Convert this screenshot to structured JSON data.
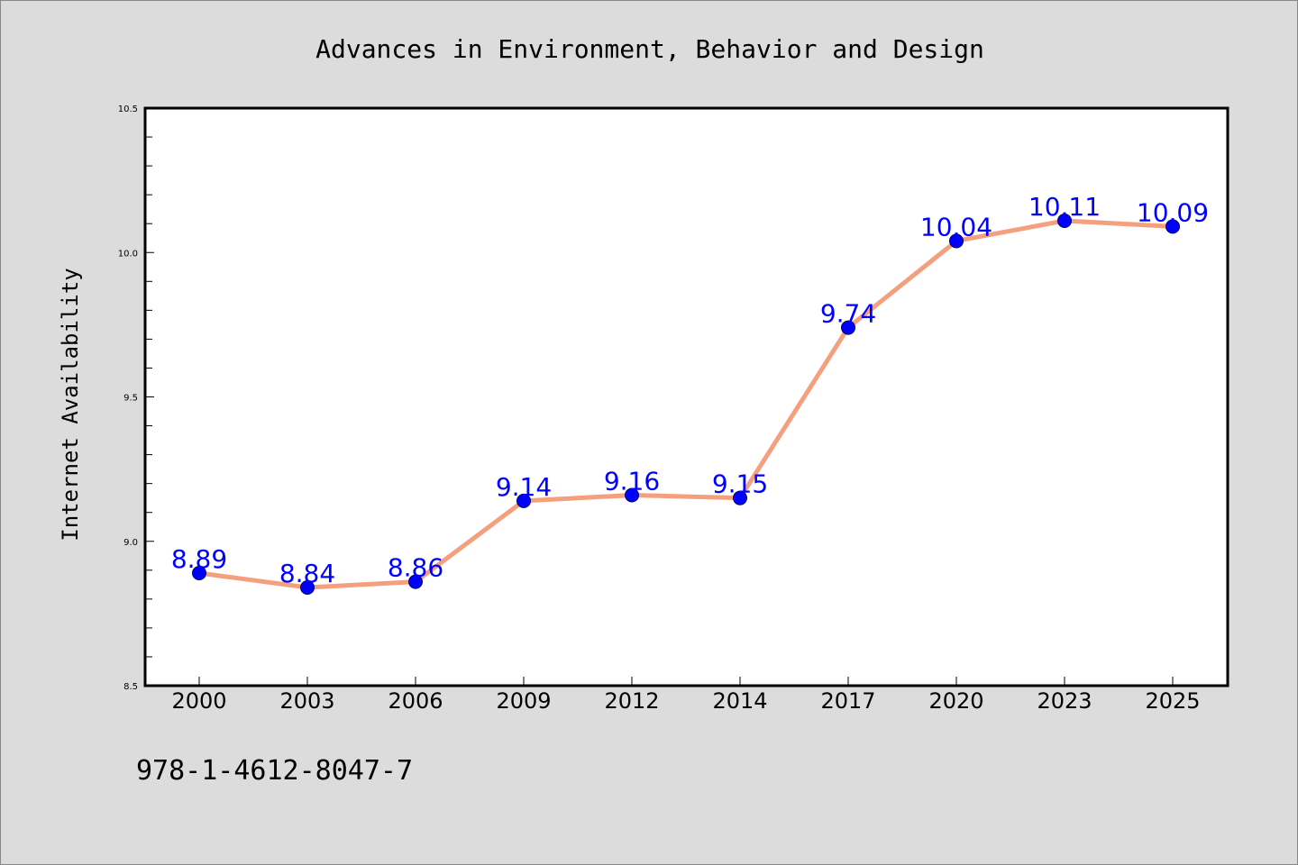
{
  "chart_data": {
    "type": "line",
    "title": "Advances in Environment, Behavior and Design",
    "xlabel": "",
    "ylabel": "Internet Availability",
    "categories": [
      "2000",
      "2003",
      "2006",
      "2009",
      "2012",
      "2014",
      "2017",
      "2020",
      "2023",
      "2025"
    ],
    "series": [
      {
        "values": [
          8.89,
          8.84,
          8.86,
          9.14,
          9.16,
          9.15,
          9.74,
          10.04,
          10.11,
          10.09
        ],
        "data_labels": [
          "8.89",
          "8.84",
          "8.86",
          "9.14",
          "9.16",
          "9.15",
          "9.74",
          "10.04",
          "10.11",
          "10.09"
        ]
      }
    ],
    "ylim": [
      8.5,
      10.5
    ],
    "yticks": [
      "8.5",
      "9.0",
      "9.5",
      "10.0",
      "10.5"
    ],
    "grid": false,
    "legend": "none",
    "colors": {
      "background": "#dcdcdc",
      "plot_area": "#ffffff",
      "line": "#f4a07f",
      "marker": "#0000ff",
      "data_label": "#0000ff"
    },
    "footnote": "978-1-4612-8047-7"
  }
}
